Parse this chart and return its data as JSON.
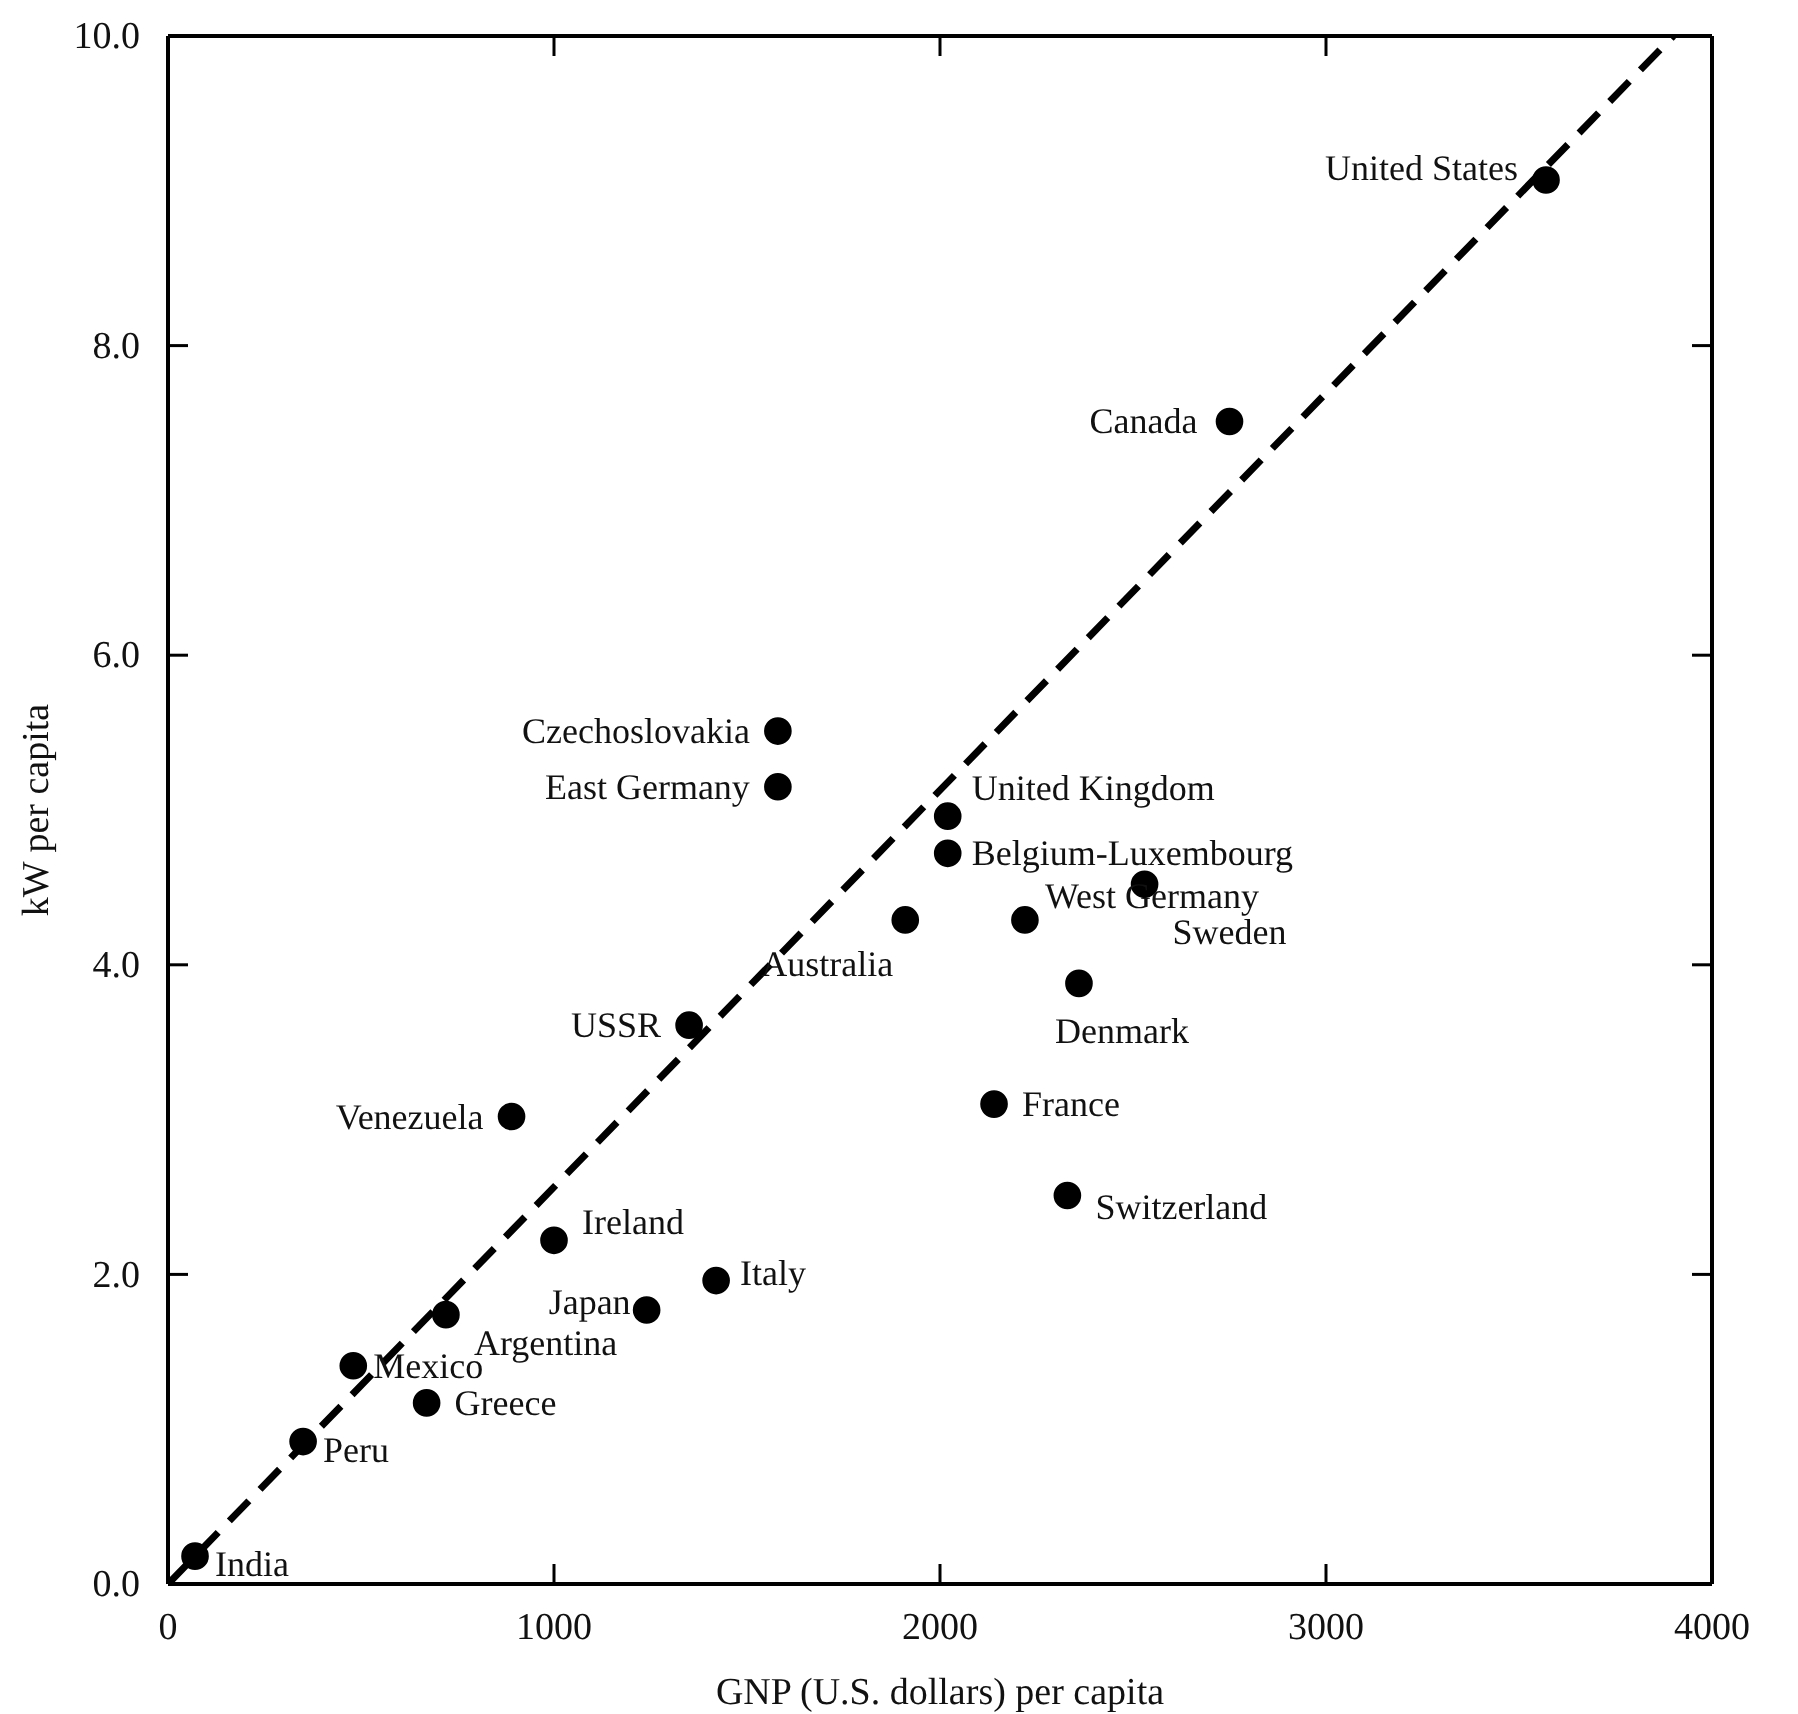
{
  "chart_data": {
    "type": "scatter",
    "xlabel": "GNP (U.S. dollars) per capita",
    "ylabel": "kW per capita",
    "xlim": [
      0,
      4000
    ],
    "ylim": [
      0,
      10
    ],
    "xticks": [
      0,
      1000,
      2000,
      3000,
      4000
    ],
    "yticks": [
      {
        "value": 0,
        "label": "0.0"
      },
      {
        "value": 2,
        "label": "2.0"
      },
      {
        "value": 4,
        "label": "4.0"
      },
      {
        "value": 6,
        "label": "6.0"
      },
      {
        "value": 8,
        "label": "8.0"
      },
      {
        "value": 10,
        "label": "10.0"
      }
    ],
    "grid": false,
    "marker": "circle",
    "series": [
      {
        "type": "scatter",
        "color": "#000000",
        "x": [
          70,
          350,
          670,
          480,
          720,
          1240,
          1420,
          1000,
          890,
          1350,
          1580,
          1580,
          2020,
          2020,
          1910,
          2220,
          2530,
          2360,
          2140,
          2330,
          2750,
          3570
        ],
        "values": [
          0.18,
          0.92,
          1.17,
          1.41,
          1.74,
          1.77,
          1.96,
          2.22,
          3.02,
          3.61,
          5.51,
          5.15,
          4.96,
          4.72,
          4.29,
          4.29,
          4.52,
          3.88,
          3.1,
          2.51,
          7.51,
          9.07
        ]
      },
      {
        "type": "line",
        "color": "#000000",
        "line_style": "dashed",
        "marker": "none",
        "x": [
          0,
          3900
        ],
        "values": [
          0,
          10
        ]
      }
    ],
    "annotations": [
      {
        "text": "India",
        "x": 70,
        "y": 0.18
      },
      {
        "text": "Peru",
        "x": 350,
        "y": 0.92
      },
      {
        "text": "Greece",
        "x": 670,
        "y": 1.17
      },
      {
        "text": "Mexico",
        "x": 480,
        "y": 1.41
      },
      {
        "text": "Argentina",
        "x": 720,
        "y": 1.74
      },
      {
        "text": "Japan",
        "x": 1240,
        "y": 1.77
      },
      {
        "text": "Italy",
        "x": 1420,
        "y": 1.96
      },
      {
        "text": "Ireland",
        "x": 1000,
        "y": 2.22
      },
      {
        "text": "Venezuela",
        "x": 890,
        "y": 3.02
      },
      {
        "text": "USSR",
        "x": 1350,
        "y": 3.61
      },
      {
        "text": "Czechoslovakia",
        "x": 1580,
        "y": 5.51
      },
      {
        "text": "East Germany",
        "x": 1580,
        "y": 5.15
      },
      {
        "text": "United Kingdom",
        "x": 2020,
        "y": 4.96
      },
      {
        "text": "Belgium-Luxembourg",
        "x": 2020,
        "y": 4.72
      },
      {
        "text": "Australia",
        "x": 1910,
        "y": 4.29
      },
      {
        "text": "West Germany",
        "x": 2220,
        "y": 4.29
      },
      {
        "text": "Sweden",
        "x": 2530,
        "y": 4.52
      },
      {
        "text": "Denmark",
        "x": 2360,
        "y": 3.88
      },
      {
        "text": "France",
        "x": 2140,
        "y": 3.1
      },
      {
        "text": "Switzerland",
        "x": 2330,
        "y": 2.51
      },
      {
        "text": "Canada",
        "x": 2750,
        "y": 7.51
      },
      {
        "text": "United States",
        "x": 3570,
        "y": 9.07
      }
    ]
  }
}
